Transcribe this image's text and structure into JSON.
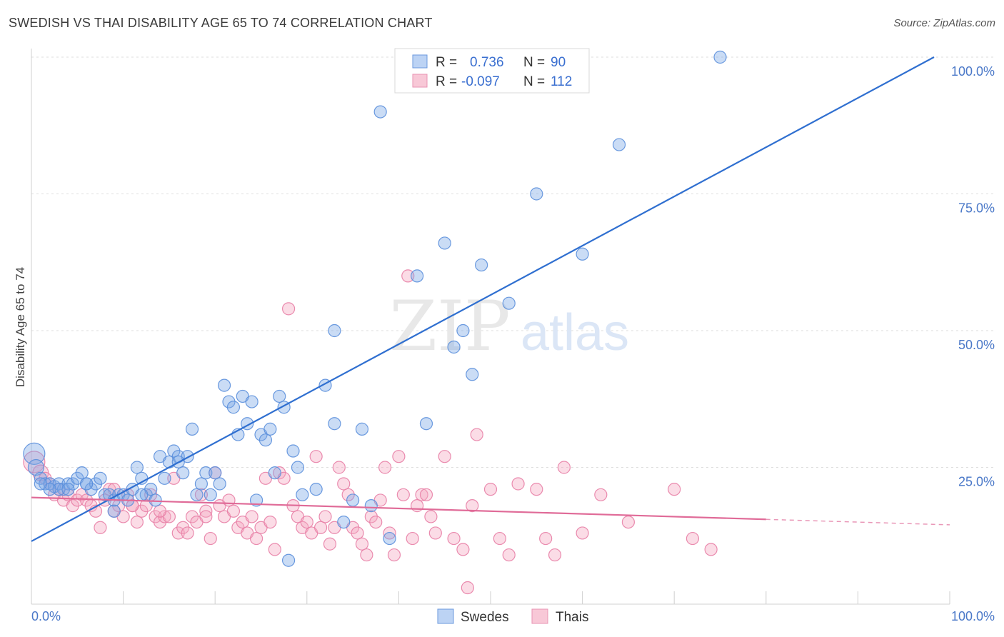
{
  "title": "SWEDISH VS THAI DISABILITY AGE 65 TO 74 CORRELATION CHART",
  "source": "Source: ZipAtlas.com",
  "watermark": {
    "zip": "ZIP",
    "atlas": "atlas"
  },
  "legend_top": {
    "rows": [
      {
        "r_label": "R =",
        "r_value": "0.736",
        "n_label": "N =",
        "n_value": "90"
      },
      {
        "r_label": "R =",
        "r_value": "-0.097",
        "n_label": "N =",
        "n_value": "112"
      }
    ]
  },
  "chart_data": {
    "type": "scatter",
    "title": "SWEDISH VS THAI DISABILITY AGE 65 TO 74 CORRELATION CHART",
    "xlabel": "",
    "ylabel": "Disability Age 65 to 74",
    "xlim": [
      0,
      100
    ],
    "ylim": [
      0,
      100
    ],
    "x_tick_labels": [
      "0.0%",
      "100.0%"
    ],
    "y_ticks": [
      25,
      50,
      75,
      100
    ],
    "y_tick_labels": [
      "25.0%",
      "50.0%",
      "75.0%",
      "100.0%"
    ],
    "grid": "horizontal dashed",
    "legend_placement": "bottom-center",
    "series": [
      {
        "name": "Swedes",
        "color": "#7ba7e6",
        "stroke": "#5b8fdc",
        "trend": {
          "x": [
            0,
            100
          ],
          "y": [
            11.5,
            105
          ],
          "color": "#2f6fd0"
        },
        "points": [
          [
            0.3,
            27.5
          ],
          [
            0.5,
            25
          ],
          [
            1,
            23
          ],
          [
            1.5,
            22
          ],
          [
            2,
            22
          ],
          [
            2.5,
            21.5
          ],
          [
            3,
            22
          ],
          [
            3.5,
            21
          ],
          [
            4,
            22
          ],
          [
            4.5,
            22
          ],
          [
            5,
            23
          ],
          [
            5.5,
            24
          ],
          [
            6,
            22
          ],
          [
            6.5,
            21
          ],
          [
            7,
            22
          ],
          [
            7.5,
            23
          ],
          [
            8,
            20
          ],
          [
            8.5,
            20
          ],
          [
            9,
            19
          ],
          [
            9.5,
            20
          ],
          [
            10,
            20
          ],
          [
            10.5,
            19
          ],
          [
            11,
            21
          ],
          [
            11.5,
            25
          ],
          [
            12,
            23
          ],
          [
            12.5,
            20
          ],
          [
            13,
            21
          ],
          [
            13.5,
            19
          ],
          [
            14,
            27
          ],
          [
            14.5,
            23
          ],
          [
            15,
            26
          ],
          [
            15.5,
            28
          ],
          [
            16,
            27
          ],
          [
            16.5,
            24
          ],
          [
            17,
            27
          ],
          [
            17.5,
            32
          ],
          [
            18,
            20
          ],
          [
            18.5,
            22
          ],
          [
            19,
            24
          ],
          [
            19.5,
            20
          ],
          [
            20,
            24
          ],
          [
            20.5,
            22
          ],
          [
            21,
            40
          ],
          [
            21.5,
            37
          ],
          [
            22,
            36
          ],
          [
            22.5,
            31
          ],
          [
            23,
            38
          ],
          [
            23.5,
            33
          ],
          [
            24,
            37
          ],
          [
            24.5,
            19
          ],
          [
            25,
            31
          ],
          [
            25.5,
            30
          ],
          [
            26,
            32
          ],
          [
            26.5,
            24
          ],
          [
            27,
            38
          ],
          [
            27.5,
            36
          ],
          [
            28,
            8
          ],
          [
            28.5,
            28
          ],
          [
            29,
            25
          ],
          [
            29.5,
            20
          ],
          [
            31,
            21
          ],
          [
            32,
            40
          ],
          [
            33,
            33
          ],
          [
            34,
            15
          ],
          [
            35,
            19
          ],
          [
            36,
            32
          ],
          [
            37,
            18
          ],
          [
            39,
            12
          ],
          [
            42,
            60
          ],
          [
            43,
            33
          ],
          [
            45,
            66
          ],
          [
            46,
            47
          ],
          [
            47,
            50
          ],
          [
            48,
            42
          ],
          [
            49,
            62
          ],
          [
            52,
            55
          ],
          [
            55,
            75
          ],
          [
            60,
            64
          ],
          [
            64,
            84
          ],
          [
            75,
            100
          ],
          [
            33,
            50
          ],
          [
            38,
            90
          ],
          [
            6,
            22
          ],
          [
            12,
            20
          ],
          [
            9,
            17
          ],
          [
            16,
            26
          ],
          [
            3,
            21
          ],
          [
            2,
            21
          ],
          [
            1,
            22
          ],
          [
            4,
            21
          ]
        ]
      },
      {
        "name": "Thais",
        "color": "#f4a7c0",
        "stroke": "#e880a6",
        "trend": {
          "x": [
            0,
            80
          ],
          "y": [
            19.5,
            15.5
          ],
          "dashed_to": [
            100,
            14.5
          ],
          "color": "#e06b98"
        },
        "points": [
          [
            0.3,
            26
          ],
          [
            1,
            24
          ],
          [
            1.5,
            23
          ],
          [
            2,
            22
          ],
          [
            2.5,
            20
          ],
          [
            3,
            21
          ],
          [
            3.5,
            19
          ],
          [
            4,
            20
          ],
          [
            4.5,
            18
          ],
          [
            5,
            19
          ],
          [
            5.5,
            20
          ],
          [
            6,
            19
          ],
          [
            6.5,
            18
          ],
          [
            7,
            17
          ],
          [
            7.5,
            14
          ],
          [
            8,
            19
          ],
          [
            8.5,
            21
          ],
          [
            9,
            17
          ],
          [
            9.5,
            18
          ],
          [
            10,
            16
          ],
          [
            10.5,
            20
          ],
          [
            11,
            18
          ],
          [
            11.5,
            15
          ],
          [
            12,
            17
          ],
          [
            12.5,
            18
          ],
          [
            13,
            20
          ],
          [
            13.5,
            16
          ],
          [
            14,
            15
          ],
          [
            14.5,
            16
          ],
          [
            15,
            16
          ],
          [
            15.5,
            23
          ],
          [
            16,
            13
          ],
          [
            16.5,
            14
          ],
          [
            17,
            13
          ],
          [
            17.5,
            16
          ],
          [
            18,
            15
          ],
          [
            18.5,
            20
          ],
          [
            19,
            17
          ],
          [
            19.5,
            12
          ],
          [
            20,
            24
          ],
          [
            20.5,
            18
          ],
          [
            21,
            16
          ],
          [
            21.5,
            19
          ],
          [
            22,
            17
          ],
          [
            22.5,
            14
          ],
          [
            23,
            15
          ],
          [
            23.5,
            13
          ],
          [
            24,
            16
          ],
          [
            24.5,
            12
          ],
          [
            25,
            14
          ],
          [
            25.5,
            23
          ],
          [
            26,
            15
          ],
          [
            26.5,
            10
          ],
          [
            27,
            24
          ],
          [
            27.5,
            23
          ],
          [
            28,
            54
          ],
          [
            28.5,
            18
          ],
          [
            29,
            16
          ],
          [
            29.5,
            14
          ],
          [
            30,
            15
          ],
          [
            30.5,
            13
          ],
          [
            31,
            27
          ],
          [
            31.5,
            14
          ],
          [
            32,
            16
          ],
          [
            32.5,
            11
          ],
          [
            33,
            14
          ],
          [
            33.5,
            25
          ],
          [
            34,
            22
          ],
          [
            34.5,
            20
          ],
          [
            35,
            14
          ],
          [
            35.5,
            13
          ],
          [
            36,
            11
          ],
          [
            36.5,
            9
          ],
          [
            37,
            16
          ],
          [
            37.5,
            15
          ],
          [
            38,
            19
          ],
          [
            38.5,
            25
          ],
          [
            39,
            13
          ],
          [
            39.5,
            9
          ],
          [
            40,
            27
          ],
          [
            40.5,
            20
          ],
          [
            41,
            60
          ],
          [
            41.5,
            12
          ],
          [
            42,
            18
          ],
          [
            42.5,
            20
          ],
          [
            43,
            20
          ],
          [
            43.5,
            16
          ],
          [
            44,
            13
          ],
          [
            45,
            27
          ],
          [
            46,
            12
          ],
          [
            47,
            10
          ],
          [
            47.5,
            3
          ],
          [
            48,
            18
          ],
          [
            48.5,
            31
          ],
          [
            50,
            21
          ],
          [
            51,
            12
          ],
          [
            52,
            9
          ],
          [
            53,
            22
          ],
          [
            55,
            21
          ],
          [
            56,
            12
          ],
          [
            57,
            9
          ],
          [
            58,
            25
          ],
          [
            60,
            13
          ],
          [
            62,
            20
          ],
          [
            65,
            15
          ],
          [
            70,
            21
          ],
          [
            72,
            12
          ],
          [
            74,
            10
          ],
          [
            19,
            16
          ],
          [
            14,
            17
          ],
          [
            9,
            21
          ],
          [
            11,
            18
          ]
        ]
      }
    ]
  },
  "bottom_legend": [
    {
      "label": "Swedes",
      "color": "#a9c8f3",
      "stroke": "#6b98de"
    },
    {
      "label": "Thais",
      "color": "#f8c3d4",
      "stroke": "#e993b3"
    }
  ]
}
